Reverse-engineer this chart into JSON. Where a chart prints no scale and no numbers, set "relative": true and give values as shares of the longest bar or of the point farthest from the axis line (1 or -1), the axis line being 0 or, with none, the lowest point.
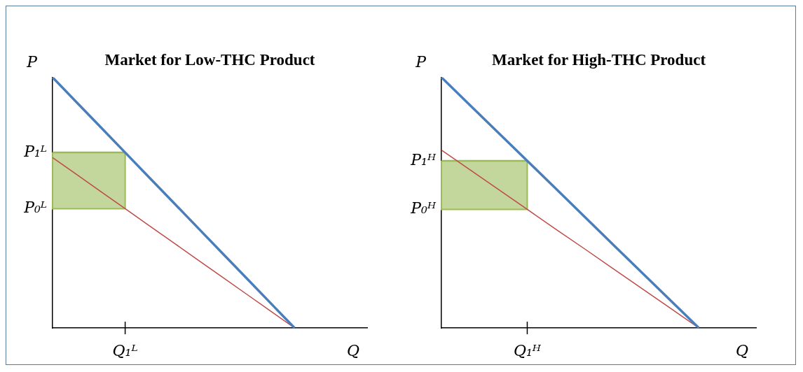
{
  "chart_data": [
    {
      "type": "line",
      "title": "Market for Low-THC Product",
      "xlabel": "Q",
      "ylabel": "P",
      "relative": true,
      "marker": "none",
      "categories": [
        null,
        null,
        null,
        null,
        null,
        null,
        null,
        null,
        null,
        null,
        null,
        null,
        null,
        null
      ],
      "series": [
        {
          "color": "#4a7ebb",
          "values": [
            1,
            0.9,
            0.8,
            0.7,
            0.6,
            0.5,
            0.4,
            0.3,
            0.2,
            0.1,
            0,
            null,
            null,
            null
          ]
        },
        {
          "color": "#be4b48",
          "values": [
            0.68,
            0.612,
            0.544,
            0.476,
            0.408,
            0.34,
            0.272,
            0.204,
            0.136,
            0.068,
            0,
            null,
            null,
            null
          ]
        },
        {
          "color": "#9bbb59",
          "values": [
            0.7,
            0.7,
            0.7,
            0.7,
            null,
            null,
            null,
            null,
            null,
            null,
            null,
            null,
            null,
            null
          ],
          "lower": [
            0.476,
            0.476,
            0.476,
            0.476,
            null,
            null,
            null,
            null,
            null,
            null,
            null,
            null,
            null,
            null
          ],
          "upper": [
            0.7,
            0.7,
            0.7,
            0.7,
            null,
            null,
            null,
            null,
            null,
            null,
            null,
            null,
            null,
            null
          ]
        }
      ],
      "annotations": [
        "P₁ᴸ",
        "P₀ᴸ",
        "Q₁ᴸ"
      ]
    },
    {
      "type": "line",
      "title": "Market for High-THC Product",
      "xlabel": "Q",
      "ylabel": "P",
      "relative": true,
      "marker": "none",
      "categories": [
        null,
        null,
        null,
        null,
        null,
        null,
        null,
        null,
        null,
        null,
        null,
        null
      ],
      "series": [
        {
          "color": "#4a7ebb",
          "values": [
            1,
            0.889,
            0.778,
            0.667,
            0.556,
            0.444,
            0.333,
            0.222,
            0.111,
            0,
            null,
            null
          ]
        },
        {
          "color": "#be4b48",
          "values": [
            0.71,
            0.631,
            0.552,
            0.473,
            0.394,
            0.316,
            0.237,
            0.158,
            0.079,
            0,
            null,
            null
          ]
        },
        {
          "color": "#9bbb59",
          "values": [
            0.667,
            0.667,
            0.667,
            0.667,
            null,
            null,
            null,
            null,
            null,
            null,
            null,
            null
          ],
          "lower": [
            0.473,
            0.473,
            0.473,
            0.473,
            null,
            null,
            null,
            null,
            null,
            null,
            null,
            null
          ],
          "upper": [
            0.667,
            0.667,
            0.667,
            0.667,
            null,
            null,
            null,
            null,
            null,
            null,
            null,
            null
          ]
        }
      ],
      "annotations": [
        "P₁ᴴ",
        "P₀ᴴ",
        "Q₁ᴴ"
      ]
    }
  ]
}
